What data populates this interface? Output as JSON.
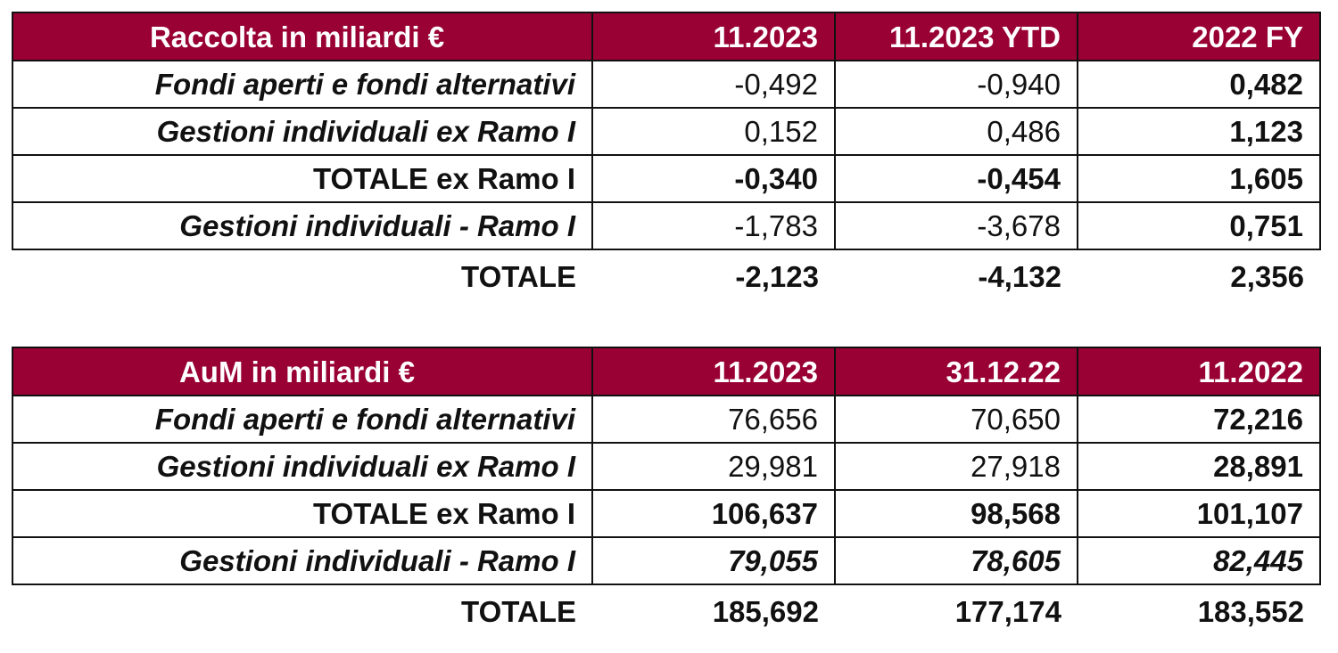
{
  "raccolta": {
    "header": [
      "Raccolta in miliardi €",
      "11.2023",
      "11.2023 YTD",
      "2022 FY"
    ],
    "rows": [
      {
        "label": "Fondi aperti e fondi alternativi",
        "values": [
          "-0,492",
          "-0,940",
          "0,482"
        ]
      },
      {
        "label": "Gestioni individuali ex Ramo I",
        "values": [
          "0,152",
          "0,486",
          "1,123"
        ]
      },
      {
        "label": "TOTALE ex Ramo I",
        "values": [
          "-0,340",
          "-0,454",
          "1,605"
        ]
      },
      {
        "label": "Gestioni individuali - Ramo I",
        "values": [
          "-1,783",
          "-3,678",
          "0,751"
        ]
      }
    ],
    "total": {
      "label": "TOTALE",
      "values": [
        "-2,123",
        "-4,132",
        "2,356"
      ]
    }
  },
  "aum": {
    "header": [
      "AuM in miliardi €",
      "11.2023",
      "31.12.22",
      "11.2022"
    ],
    "rows": [
      {
        "label": "Fondi aperti e fondi alternativi",
        "values": [
          "76,656",
          "70,650",
          "72,216"
        ]
      },
      {
        "label": "Gestioni individuali ex Ramo I",
        "values": [
          "29,981",
          "27,918",
          "28,891"
        ]
      },
      {
        "label": "TOTALE ex Ramo I",
        "values": [
          "106,637",
          "98,568",
          "101,107"
        ]
      },
      {
        "label": "Gestioni individuali - Ramo I",
        "values": [
          "79,055",
          "78,605",
          "82,445"
        ]
      }
    ],
    "total": {
      "label": "TOTALE",
      "values": [
        "185,692",
        "177,174",
        "183,552"
      ]
    }
  },
  "colors": {
    "header_bg": "#990033",
    "header_text": "#ffffff",
    "border": "#111111"
  }
}
